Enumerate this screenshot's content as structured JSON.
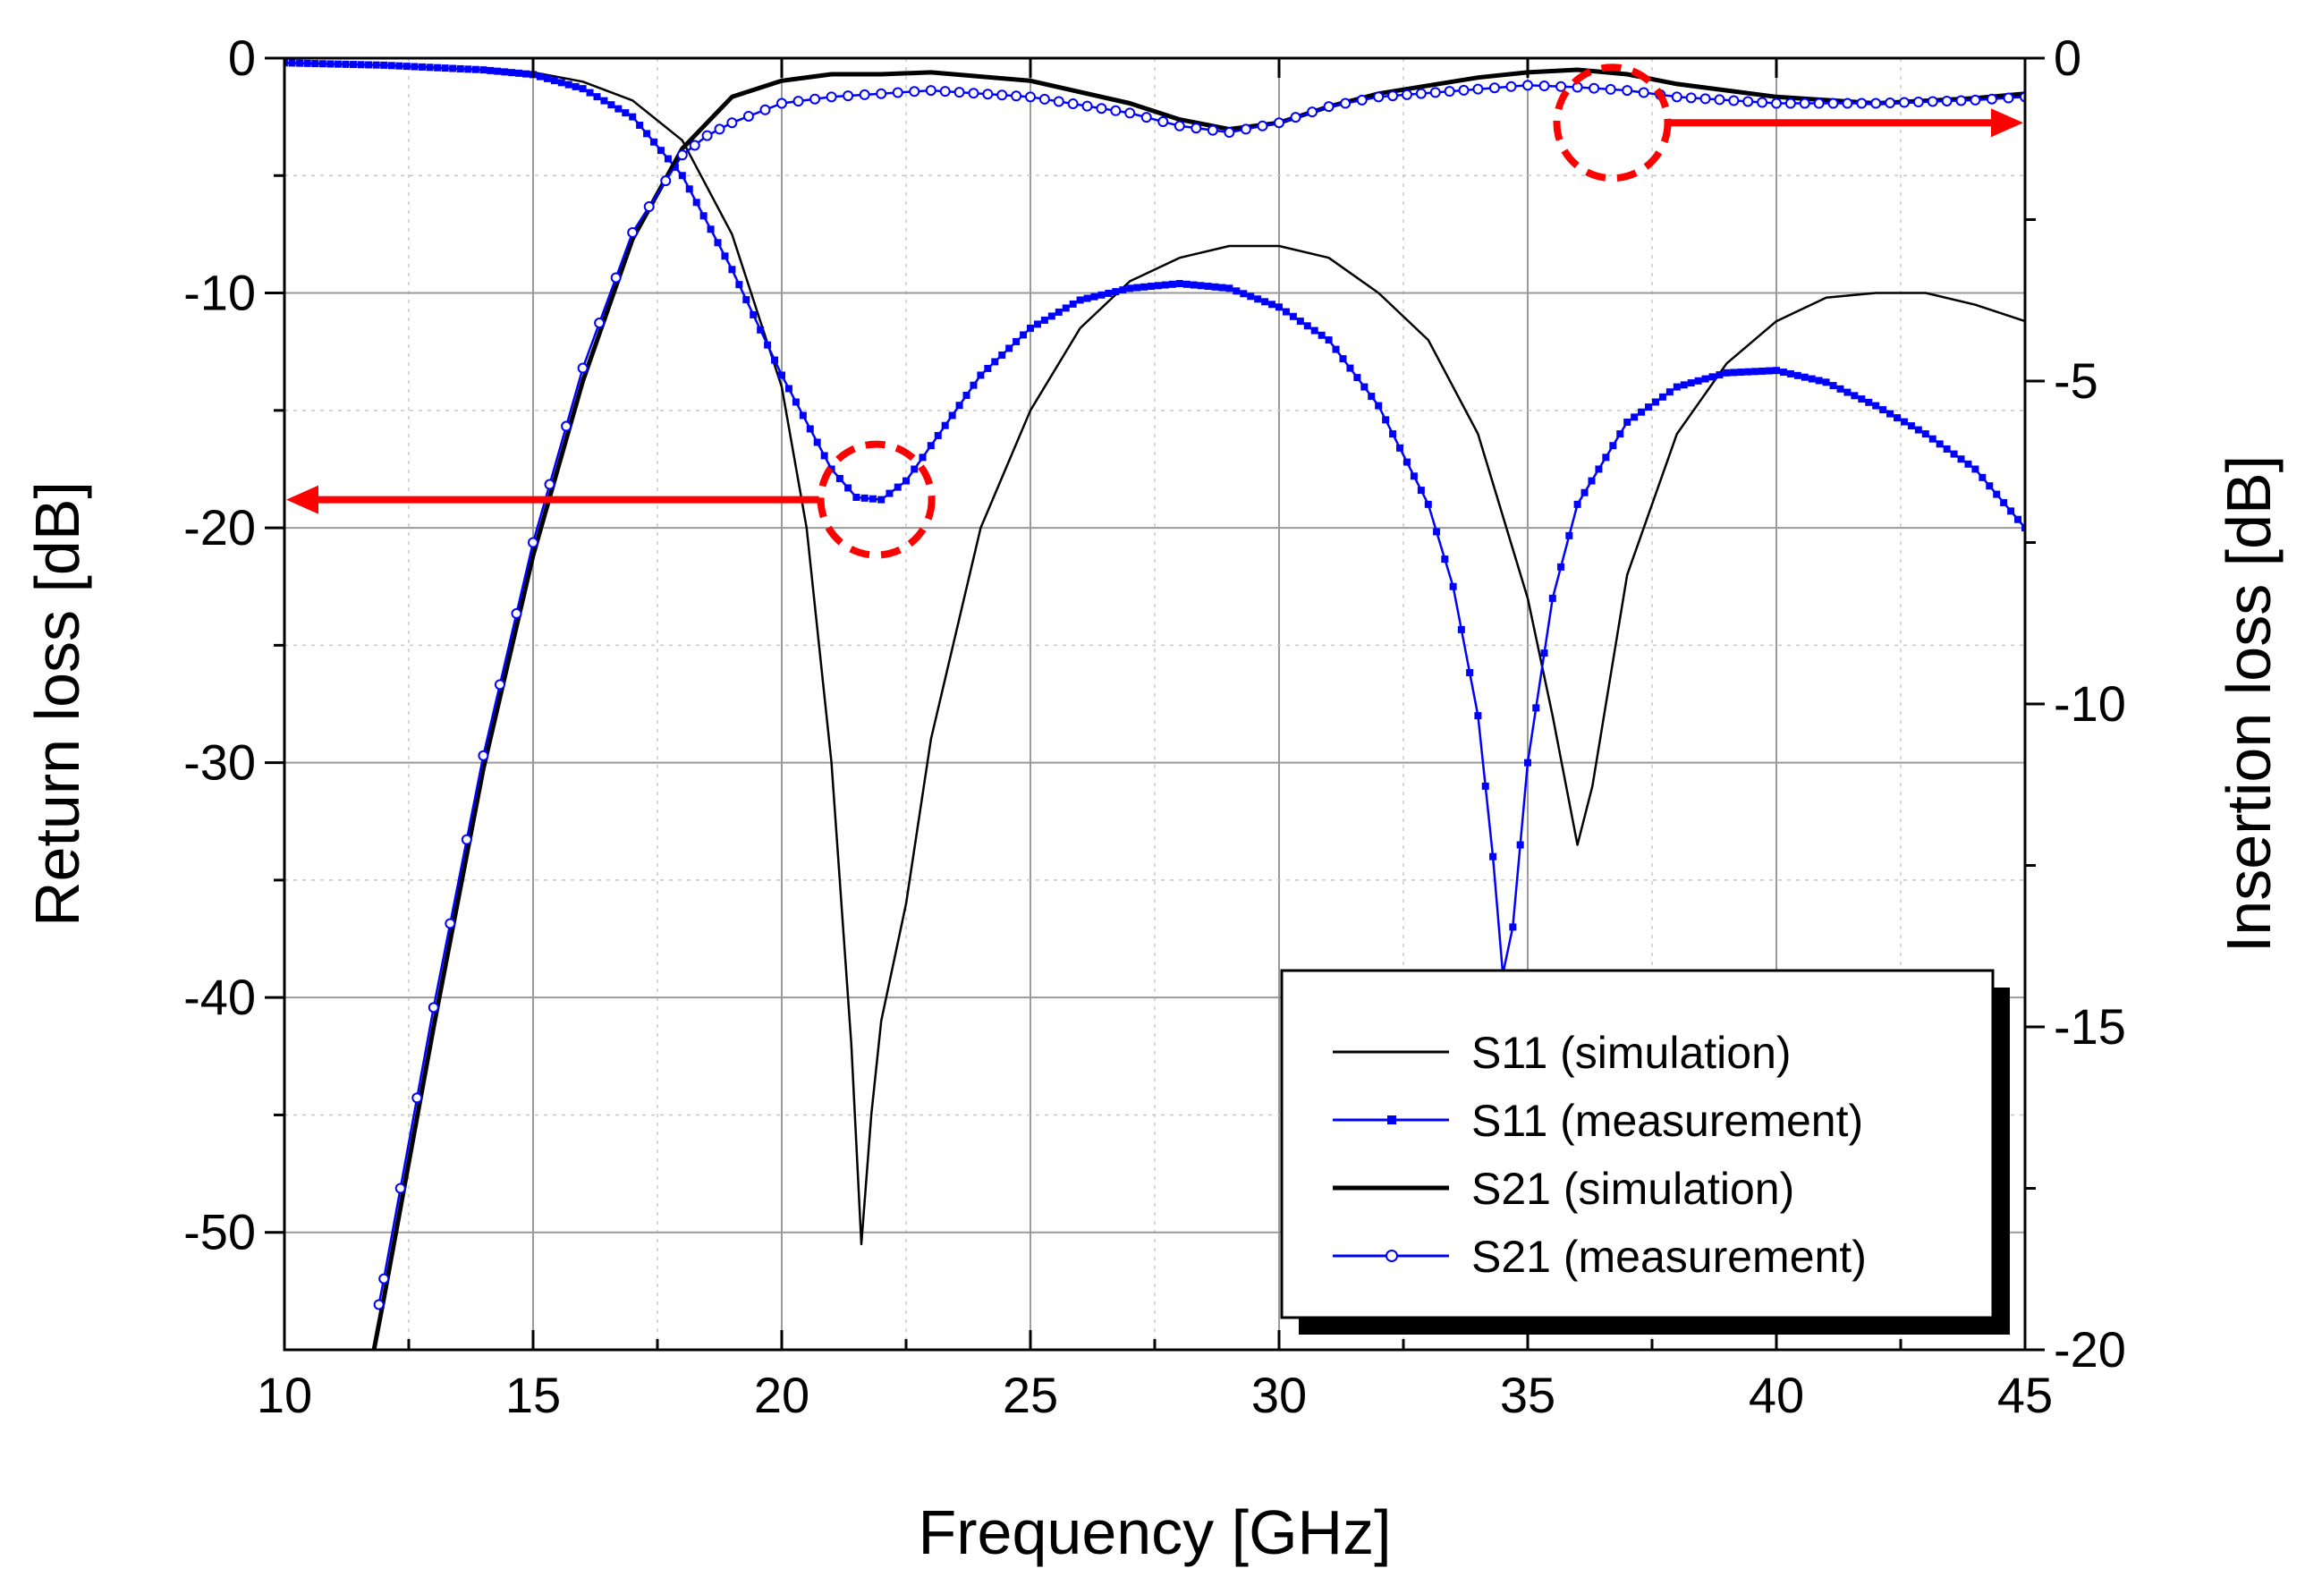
{
  "chart_data": {
    "type": "line",
    "title": "",
    "xlabel": "Frequency [GHz]",
    "ylabel": "Return loss [dB]",
    "y2label": "Insertion loss [dB]",
    "xlim": [
      10,
      45
    ],
    "ylim": [
      -55,
      0
    ],
    "y2lim": [
      -20,
      0
    ],
    "grid": true,
    "x_ticks": [
      "10",
      "15",
      "20",
      "25",
      "30",
      "35",
      "40",
      "45"
    ],
    "y_ticks": [
      "0",
      "-10",
      "-20",
      "-30",
      "-40",
      "-50"
    ],
    "y2_ticks": [
      "0",
      "-5",
      "-10",
      "-15",
      "-20"
    ],
    "legend": {
      "position": "bottom-right",
      "entries": [
        "S11 (simulation)",
        "S11 (measurement)",
        "S21 (simulation)",
        "S21 (measurement)"
      ]
    },
    "series": [
      {
        "name": "S11 (simulation)",
        "axis": "left",
        "color": "#000000",
        "style": "thin",
        "points": [
          [
            10,
            -0.2
          ],
          [
            12,
            -0.3
          ],
          [
            14,
            -0.5
          ],
          [
            15,
            -0.6
          ],
          [
            16,
            -1.0
          ],
          [
            17,
            -1.8
          ],
          [
            18,
            -3.5
          ],
          [
            19,
            -7.5
          ],
          [
            20,
            -14.0
          ],
          [
            20.5,
            -20.0
          ],
          [
            21,
            -30.0
          ],
          [
            21.4,
            -42.0
          ],
          [
            21.6,
            -50.5
          ],
          [
            21.8,
            -45.0
          ],
          [
            22,
            -41.0
          ],
          [
            22.5,
            -36.0
          ],
          [
            23,
            -29.0
          ],
          [
            24,
            -20.0
          ],
          [
            25,
            -15.0
          ],
          [
            26,
            -11.5
          ],
          [
            27,
            -9.5
          ],
          [
            28,
            -8.5
          ],
          [
            29,
            -8.0
          ],
          [
            30,
            -8.0
          ],
          [
            31,
            -8.5
          ],
          [
            32,
            -10.0
          ],
          [
            33,
            -12.0
          ],
          [
            34,
            -16.0
          ],
          [
            35,
            -23.0
          ],
          [
            35.5,
            -28.0
          ],
          [
            36,
            -33.5
          ],
          [
            36.3,
            -31.0
          ],
          [
            37,
            -22.0
          ],
          [
            38,
            -16.0
          ],
          [
            39,
            -13.0
          ],
          [
            40,
            -11.2
          ],
          [
            41,
            -10.2
          ],
          [
            42,
            -10.0
          ],
          [
            43,
            -10.0
          ],
          [
            44,
            -10.5
          ],
          [
            45,
            -11.2
          ]
        ]
      },
      {
        "name": "S11 (measurement)",
        "axis": "left",
        "color": "#0000ff",
        "style": "square-markers",
        "points": [
          [
            10,
            -0.2
          ],
          [
            12,
            -0.3
          ],
          [
            14,
            -0.5
          ],
          [
            15,
            -0.7
          ],
          [
            16,
            -1.3
          ],
          [
            17,
            -2.5
          ],
          [
            18,
            -5.0
          ],
          [
            19,
            -9.0
          ],
          [
            20,
            -13.5
          ],
          [
            21,
            -17.5
          ],
          [
            21.5,
            -18.7
          ],
          [
            22,
            -18.8
          ],
          [
            22.5,
            -18.0
          ],
          [
            23,
            -16.5
          ],
          [
            24,
            -13.5
          ],
          [
            25,
            -11.5
          ],
          [
            26,
            -10.3
          ],
          [
            27,
            -9.8
          ],
          [
            28,
            -9.6
          ],
          [
            29,
            -9.8
          ],
          [
            30,
            -10.6
          ],
          [
            31,
            -12.0
          ],
          [
            32,
            -14.8
          ],
          [
            33,
            -19.0
          ],
          [
            33.5,
            -22.5
          ],
          [
            34,
            -28.0
          ],
          [
            34.3,
            -34.0
          ],
          [
            34.5,
            -39.0
          ],
          [
            34.7,
            -37.0
          ],
          [
            35,
            -30.0
          ],
          [
            35.5,
            -23.0
          ],
          [
            36,
            -19.0
          ],
          [
            37,
            -15.5
          ],
          [
            38,
            -14.0
          ],
          [
            39,
            -13.4
          ],
          [
            40,
            -13.3
          ],
          [
            41,
            -13.8
          ],
          [
            42,
            -14.8
          ],
          [
            43,
            -16.0
          ],
          [
            44,
            -17.5
          ],
          [
            45,
            -20.0
          ]
        ]
      },
      {
        "name": "S21 (simulation)",
        "axis": "right",
        "color": "#000000",
        "style": "thick",
        "points": [
          [
            11.8,
            -20.0
          ],
          [
            12,
            -19.2
          ],
          [
            13,
            -15.0
          ],
          [
            14,
            -11.0
          ],
          [
            15,
            -7.7
          ],
          [
            16,
            -5.0
          ],
          [
            17,
            -2.8
          ],
          [
            18,
            -1.4
          ],
          [
            18.5,
            -1.0
          ],
          [
            19,
            -0.6
          ],
          [
            20,
            -0.35
          ],
          [
            21,
            -0.25
          ],
          [
            22,
            -0.25
          ],
          [
            23,
            -0.22
          ],
          [
            25,
            -0.35
          ],
          [
            27,
            -0.7
          ],
          [
            28,
            -0.95
          ],
          [
            29,
            -1.1
          ],
          [
            30,
            -1.0
          ],
          [
            31,
            -0.75
          ],
          [
            32,
            -0.55
          ],
          [
            34,
            -0.3
          ],
          [
            35,
            -0.22
          ],
          [
            36,
            -0.18
          ],
          [
            37,
            -0.25
          ],
          [
            38,
            -0.4
          ],
          [
            40,
            -0.6
          ],
          [
            42,
            -0.7
          ],
          [
            44,
            -0.62
          ],
          [
            45,
            -0.55
          ]
        ]
      },
      {
        "name": "S21 (measurement)",
        "axis": "right",
        "color": "#0000ff",
        "style": "circle-markers",
        "points": [
          [
            11.9,
            -19.3
          ],
          [
            12,
            -18.9
          ],
          [
            13,
            -14.7
          ],
          [
            14,
            -10.8
          ],
          [
            15,
            -7.5
          ],
          [
            16,
            -4.8
          ],
          [
            17,
            -2.7
          ],
          [
            18,
            -1.5
          ],
          [
            18.5,
            -1.2
          ],
          [
            19,
            -1.0
          ],
          [
            20,
            -0.7
          ],
          [
            21,
            -0.6
          ],
          [
            22,
            -0.55
          ],
          [
            23,
            -0.5
          ],
          [
            25,
            -0.6
          ],
          [
            27,
            -0.85
          ],
          [
            28,
            -1.05
          ],
          [
            29,
            -1.15
          ],
          [
            30,
            -1.0
          ],
          [
            31,
            -0.75
          ],
          [
            32,
            -0.6
          ],
          [
            34,
            -0.48
          ],
          [
            35,
            -0.42
          ],
          [
            36,
            -0.45
          ],
          [
            37,
            -0.5
          ],
          [
            38,
            -0.6
          ],
          [
            40,
            -0.7
          ],
          [
            42,
            -0.7
          ],
          [
            44,
            -0.65
          ],
          [
            45,
            -0.6
          ]
        ]
      }
    ],
    "annotations": [
      {
        "type": "dashed-circle",
        "color": "#ff0000",
        "x": 21.9,
        "y": -18.8,
        "axis": "left",
        "arrow": "left",
        "arrow_target": "Return loss axis"
      },
      {
        "type": "dashed-circle",
        "color": "#ff0000",
        "x": 36.7,
        "y": -1.0,
        "axis": "right",
        "arrow": "right",
        "arrow_target": "Insertion loss axis"
      }
    ]
  }
}
